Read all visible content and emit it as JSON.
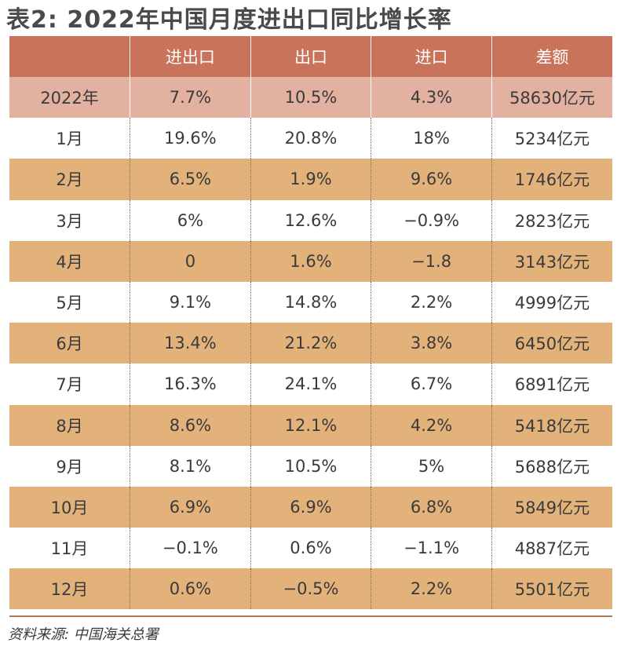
{
  "title": "表2: 2022年中国月度进出口同比增长率",
  "table": {
    "headers": [
      "",
      "进出口",
      "出口",
      "进口",
      "差额"
    ],
    "total_row": [
      "2022年",
      "7.7%",
      "10.5%",
      "4.3%",
      "58630亿元"
    ],
    "rows": [
      [
        "1月",
        "19.6%",
        "20.8%",
        "18%",
        "5234亿元"
      ],
      [
        "2月",
        "6.5%",
        "1.9%",
        "9.6%",
        "1746亿元"
      ],
      [
        "3月",
        "6%",
        "12.6%",
        "−0.9%",
        "2823亿元"
      ],
      [
        "4月",
        "0",
        "1.6%",
        "−1.8",
        "3143亿元"
      ],
      [
        "5月",
        "9.1%",
        "14.8%",
        "2.2%",
        "4999亿元"
      ],
      [
        "6月",
        "13.4%",
        "21.2%",
        "3.8%",
        "6450亿元"
      ],
      [
        "7月",
        "16.3%",
        "24.1%",
        "6.7%",
        "6891亿元"
      ],
      [
        "8月",
        "8.6%",
        "12.1%",
        "4.2%",
        "5418亿元"
      ],
      [
        "9月",
        "8.1%",
        "10.5%",
        "5%",
        "5688亿元"
      ],
      [
        "10月",
        "6.9%",
        "6.9%",
        "6.8%",
        "5849亿元"
      ],
      [
        "11月",
        "−0.1%",
        "0.6%",
        "−1.1%",
        "4887亿元"
      ],
      [
        "12月",
        "0.6%",
        "−0.5%",
        "2.2%",
        "5501亿元"
      ]
    ]
  },
  "source": "资料来源: 中国海关总署",
  "colors": {
    "header_bg": "#c8735a",
    "total_bg": "#e3b19f",
    "alt_row_bg": "#e3b27a"
  }
}
